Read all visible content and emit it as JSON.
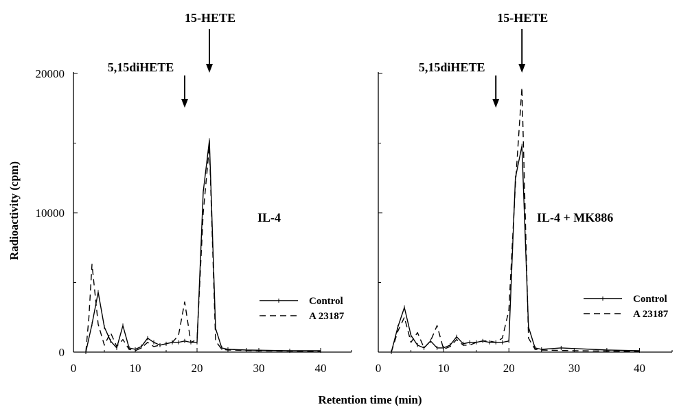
{
  "figure": {
    "ylabel": "Radioactivity (cpm)",
    "xlabel": "Retention time (min)"
  },
  "chart_data": [
    {
      "type": "line",
      "panel": "left",
      "annotation": "IL-4",
      "xlim": [
        0,
        45
      ],
      "ylim": [
        0,
        20000
      ],
      "xticks": [
        "0",
        "10",
        "20",
        "30",
        "40"
      ],
      "yticks": [
        "0",
        "10000",
        "20000"
      ],
      "peaks": [
        {
          "label": "5,15diHETE",
          "x": 18
        },
        {
          "label": "15-HETE",
          "x": 22
        }
      ],
      "legend": {
        "position": "lower-right",
        "entries": [
          "Control",
          "A 23187"
        ]
      },
      "series": [
        {
          "name": "Control",
          "style": "solid",
          "points": [
            [
              2,
              0
            ],
            [
              3,
              2000
            ],
            [
              4,
              4300
            ],
            [
              5,
              1800
            ],
            [
              6,
              800
            ],
            [
              7,
              300
            ],
            [
              8,
              1900
            ],
            [
              9,
              300
            ],
            [
              10,
              200
            ],
            [
              11,
              400
            ],
            [
              12,
              1000
            ],
            [
              13,
              700
            ],
            [
              14,
              500
            ],
            [
              15,
              600
            ],
            [
              16,
              700
            ],
            [
              17,
              700
            ],
            [
              18,
              800
            ],
            [
              19,
              700
            ],
            [
              20,
              700
            ],
            [
              21,
              11500
            ],
            [
              22,
              15200
            ],
            [
              23,
              1700
            ],
            [
              24,
              300
            ],
            [
              25,
              200
            ],
            [
              28,
              150
            ],
            [
              35,
              100
            ],
            [
              40,
              100
            ]
          ]
        },
        {
          "name": "A 23187",
          "style": "dashed",
          "points": [
            [
              2,
              0
            ],
            [
              2.5,
              2500
            ],
            [
              3,
              6300
            ],
            [
              4,
              2000
            ],
            [
              5,
              500
            ],
            [
              6,
              1400
            ],
            [
              7,
              400
            ],
            [
              8,
              900
            ],
            [
              9,
              200
            ],
            [
              10,
              100
            ],
            [
              11,
              300
            ],
            [
              12,
              700
            ],
            [
              13,
              400
            ],
            [
              14,
              500
            ],
            [
              15,
              600
            ],
            [
              16,
              700
            ],
            [
              17,
              1200
            ],
            [
              18,
              3600
            ],
            [
              19,
              700
            ],
            [
              20,
              900
            ],
            [
              21,
              10000
            ],
            [
              22,
              14800
            ],
            [
              23,
              800
            ],
            [
              24,
              200
            ],
            [
              25,
              150
            ],
            [
              30,
              100
            ],
            [
              40,
              50
            ]
          ]
        }
      ]
    },
    {
      "type": "line",
      "panel": "right",
      "annotation": "IL-4 + MK886",
      "xlim": [
        0,
        45
      ],
      "ylim": [
        0,
        20000
      ],
      "xticks": [
        "0",
        "10",
        "20",
        "30",
        "40"
      ],
      "yticks": [
        "",
        "",
        ""
      ],
      "peaks": [
        {
          "label": "5,15diHETE",
          "x": 18
        },
        {
          "label": "15-HETE",
          "x": 22
        }
      ],
      "legend": {
        "position": "lower-right",
        "entries": [
          "Control",
          "A 23187"
        ]
      },
      "series": [
        {
          "name": "Control",
          "style": "solid",
          "points": [
            [
              2,
              0
            ],
            [
              3,
              1800
            ],
            [
              4,
              3200
            ],
            [
              5,
              1200
            ],
            [
              6,
              500
            ],
            [
              7,
              300
            ],
            [
              8,
              800
            ],
            [
              9,
              300
            ],
            [
              10,
              300
            ],
            [
              11,
              500
            ],
            [
              12,
              1100
            ],
            [
              13,
              600
            ],
            [
              14,
              700
            ],
            [
              15,
              700
            ],
            [
              16,
              800
            ],
            [
              17,
              700
            ],
            [
              18,
              700
            ],
            [
              19,
              700
            ],
            [
              20,
              800
            ],
            [
              21,
              12500
            ],
            [
              22,
              14800
            ],
            [
              23,
              1800
            ],
            [
              24,
              300
            ],
            [
              25,
              200
            ],
            [
              28,
              300
            ],
            [
              35,
              150
            ],
            [
              40,
              100
            ]
          ]
        },
        {
          "name": "A 23187",
          "style": "dashed",
          "points": [
            [
              2,
              0
            ],
            [
              3,
              1500
            ],
            [
              4,
              2500
            ],
            [
              5,
              700
            ],
            [
              6,
              1400
            ],
            [
              7,
              300
            ],
            [
              8,
              800
            ],
            [
              9,
              1900
            ],
            [
              10,
              200
            ],
            [
              11,
              400
            ],
            [
              12,
              900
            ],
            [
              13,
              500
            ],
            [
              14,
              500
            ],
            [
              15,
              700
            ],
            [
              16,
              800
            ],
            [
              17,
              800
            ],
            [
              18,
              700
            ],
            [
              19,
              1000
            ],
            [
              20,
              3000
            ],
            [
              21,
              12000
            ],
            [
              22,
              19000
            ],
            [
              23,
              1000
            ],
            [
              24,
              200
            ],
            [
              25,
              150
            ],
            [
              30,
              100
            ],
            [
              40,
              50
            ]
          ]
        }
      ]
    }
  ]
}
